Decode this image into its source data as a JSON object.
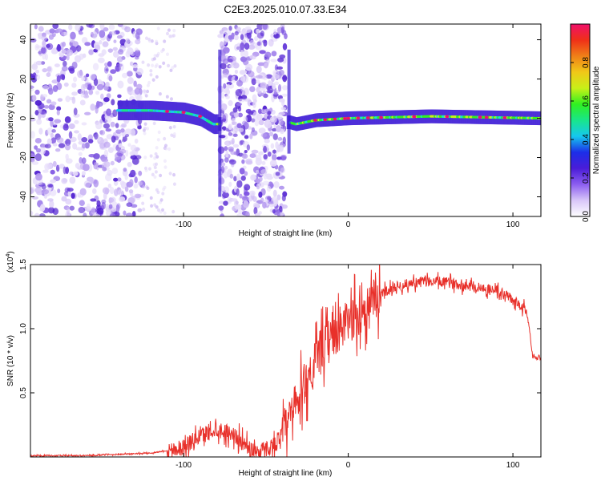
{
  "page": {
    "title": "C2E3.2025.010.07.33.E34"
  },
  "colors": {
    "snr_line": "#e8302a",
    "axis": "#000000",
    "spec_core": "#4a2ad8",
    "spec_scatter": "#8c6ee8"
  },
  "chart_data": [
    {
      "type": "heatmap",
      "name": "spectrogram",
      "title": "C2E3.2025.010.07.33.E34",
      "xlabel": "Height of straight line (km)",
      "ylabel": "Frequency (Hz)",
      "xlim": [
        -193,
        117
      ],
      "ylim": [
        -50,
        48
      ],
      "x_ticks": [
        -100,
        0,
        100
      ],
      "x_tick_labels": [
        "-100",
        "0",
        "100"
      ],
      "y_ticks": [
        -40,
        -20,
        0,
        20,
        40
      ],
      "y_tick_labels": [
        "-40",
        "-20",
        "0",
        "20",
        "40"
      ],
      "grid": false,
      "colorbar": {
        "label": "Normalized spectral amplitude",
        "range": [
          0,
          1
        ],
        "ticks": [
          0.0,
          0.2,
          0.4,
          0.6,
          0.8
        ],
        "tick_labels": [
          "0.0",
          "0.2",
          "0.4",
          "0.6",
          "0.8"
        ],
        "colors": [
          "#ffffff",
          "#d8c6f8",
          "#8c5ef0",
          "#4a1cd8",
          "#1c2ee8",
          "#16c8ee",
          "#18e68a",
          "#30f020",
          "#c8f018",
          "#f0c818",
          "#f08018",
          "#f03018",
          "#f0106a"
        ]
      },
      "features": {
        "main_trace": [
          {
            "x": -140,
            "y": 4
          },
          {
            "x": -120,
            "y": 4
          },
          {
            "x": -100,
            "y": 3
          },
          {
            "x": -90,
            "y": 1
          },
          {
            "x": -82,
            "y": -3
          },
          {
            "x": -36,
            "y": -2
          },
          {
            "x": -32,
            "y": -3
          },
          {
            "x": -20,
            "y": -1
          },
          {
            "x": 0,
            "y": 0
          },
          {
            "x": 50,
            "y": 1
          },
          {
            "x": 117,
            "y": 0
          }
        ],
        "noisy_regions": [
          [
            -193,
            -125
          ],
          [
            -78,
            -38
          ]
        ],
        "spikes": [
          {
            "x": -78,
            "y_min": -40,
            "y_max": 35
          },
          {
            "x": -36,
            "y_min": -18,
            "y_max": 35
          }
        ]
      }
    },
    {
      "type": "line",
      "name": "snr",
      "xlabel": "Height of straight line (km)",
      "ylabel": "SNR (10 * v/v)",
      "y_scale_label": "(x10",
      "y_scale_exponent": "4",
      "xlim": [
        -193,
        117
      ],
      "ylim": [
        0,
        1.5
      ],
      "x_ticks": [
        -100,
        0,
        100
      ],
      "x_tick_labels": [
        "-100",
        "0",
        "100"
      ],
      "y_ticks": [
        0.5,
        1.0,
        1.5
      ],
      "y_tick_labels": [
        "0.5",
        "1.0",
        "1.5"
      ],
      "grid": false,
      "series": [
        {
          "x": [
            -193,
            -180,
            -160,
            -140,
            -120,
            -110,
            -100,
            -95,
            -90,
            -85,
            -80,
            -75,
            -70,
            -65,
            -60,
            -55,
            -50,
            -45,
            -40,
            -35,
            -30,
            -25,
            -20,
            -15,
            -10,
            -5,
            0,
            5,
            10,
            15,
            20,
            30,
            40,
            50,
            60,
            70,
            80,
            90,
            95,
            100,
            105,
            108,
            110,
            112,
            117
          ],
          "y": [
            0.01,
            0.01,
            0.01,
            0.02,
            0.03,
            0.05,
            0.08,
            0.12,
            0.16,
            0.2,
            0.22,
            0.2,
            0.18,
            0.12,
            0.06,
            0.05,
            0.06,
            0.1,
            0.18,
            0.3,
            0.45,
            0.62,
            0.75,
            0.85,
            0.92,
            1.0,
            1.05,
            1.1,
            1.15,
            1.2,
            1.28,
            1.33,
            1.36,
            1.37,
            1.36,
            1.34,
            1.32,
            1.3,
            1.27,
            1.22,
            1.18,
            1.16,
            1.0,
            0.78,
            0.77
          ]
        }
      ]
    }
  ]
}
